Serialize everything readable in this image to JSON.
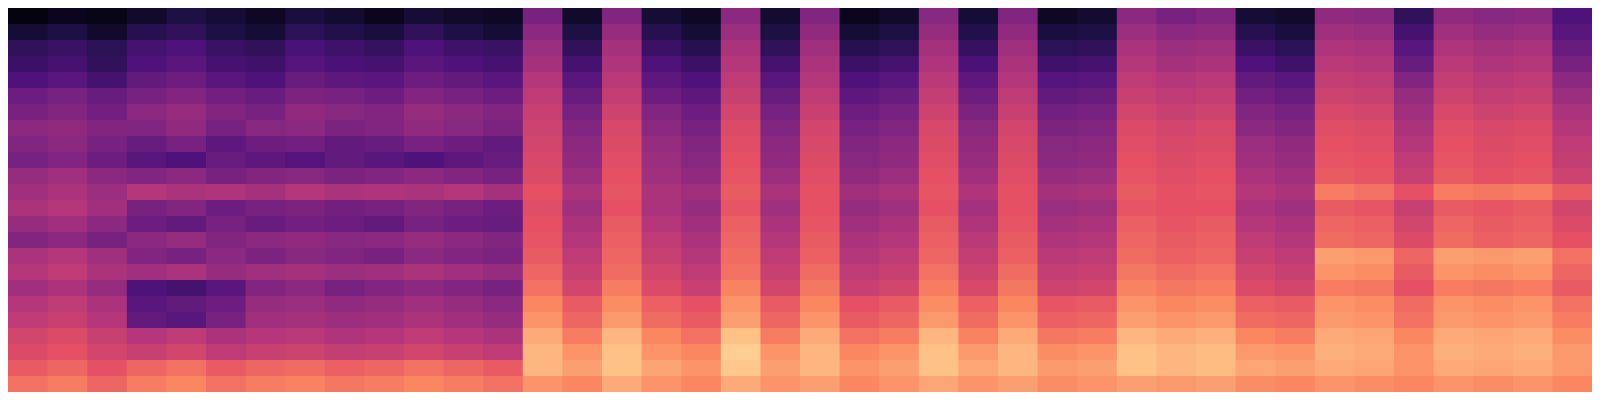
{
  "chart_data": {
    "type": "heatmap",
    "tick_labels": false,
    "color_range": [
      -80,
      0
    ],
    "cells": [
      [
        -78,
        -76,
        -77,
        -74,
        -70,
        -72,
        -75,
        -71,
        -73,
        -76,
        -72,
        -74,
        -75,
        -52,
        -74,
        -50,
        -72,
        -75,
        -48,
        -73,
        -50,
        -76,
        -74,
        -49,
        -72,
        -50,
        -75,
        -73,
        -48,
        -52,
        -50,
        -72,
        -74,
        -47,
        -48,
        -66,
        -47,
        -49,
        -48,
        -60
      ],
      [
        -72,
        -70,
        -74,
        -68,
        -66,
        -70,
        -72,
        -67,
        -69,
        -71,
        -66,
        -70,
        -72,
        -48,
        -70,
        -46,
        -68,
        -72,
        -45,
        -70,
        -47,
        -72,
        -70,
        -46,
        -69,
        -47,
        -71,
        -70,
        -45,
        -48,
        -47,
        -68,
        -71,
        -44,
        -45,
        -62,
        -44,
        -46,
        -45,
        -58
      ],
      [
        -66,
        -64,
        -67,
        -62,
        -60,
        -64,
        -66,
        -61,
        -63,
        -65,
        -60,
        -63,
        -64,
        -45,
        -66,
        -43,
        -64,
        -68,
        -42,
        -66,
        -44,
        -68,
        -66,
        -43,
        -65,
        -44,
        -67,
        -66,
        -42,
        -45,
        -44,
        -64,
        -67,
        -41,
        -42,
        -58,
        -41,
        -43,
        -42,
        -55
      ],
      [
        -64,
        -62,
        -66,
        -60,
        -58,
        -62,
        -63,
        -59,
        -61,
        -62,
        -58,
        -60,
        -62,
        -43,
        -62,
        -41,
        -60,
        -64,
        -40,
        -62,
        -42,
        -64,
        -62,
        -41,
        -61,
        -42,
        -63,
        -62,
        -40,
        -43,
        -42,
        -60,
        -63,
        -39,
        -40,
        -55,
        -39,
        -41,
        -40,
        -52
      ],
      [
        -60,
        -58,
        -62,
        -56,
        -54,
        -58,
        -60,
        -55,
        -57,
        -58,
        -54,
        -56,
        -58,
        -40,
        -58,
        -39,
        -57,
        -60,
        -38,
        -58,
        -40,
        -60,
        -58,
        -39,
        -57,
        -40,
        -59,
        -58,
        -38,
        -40,
        -39,
        -56,
        -58,
        -37,
        -38,
        -50,
        -37,
        -39,
        -38,
        -48
      ],
      [
        -54,
        -52,
        -55,
        -52,
        -50,
        -53,
        -55,
        -51,
        -52,
        -54,
        -50,
        -52,
        -54,
        -38,
        -55,
        -37,
        -54,
        -57,
        -36,
        -55,
        -38,
        -57,
        -55,
        -37,
        -54,
        -38,
        -56,
        -55,
        -36,
        -38,
        -37,
        -53,
        -55,
        -35,
        -36,
        -46,
        -35,
        -37,
        -36,
        -45
      ],
      [
        -52,
        -50,
        -53,
        -48,
        -46,
        -50,
        -52,
        -47,
        -49,
        -50,
        -46,
        -48,
        -50,
        -36,
        -52,
        -35,
        -50,
        -54,
        -34,
        -52,
        -36,
        -54,
        -52,
        -35,
        -51,
        -36,
        -53,
        -52,
        -34,
        -36,
        -35,
        -50,
        -52,
        -33,
        -34,
        -44,
        -33,
        -35,
        -34,
        -42
      ],
      [
        -48,
        -47,
        -50,
        -50,
        -47,
        -52,
        -49,
        -48,
        -51,
        -50,
        -47,
        -49,
        -51,
        -35,
        -50,
        -33,
        -48,
        -52,
        -32,
        -50,
        -34,
        -52,
        -50,
        -33,
        -49,
        -34,
        -51,
        -50,
        -32,
        -34,
        -33,
        -48,
        -50,
        -31,
        -32,
        -42,
        -31,
        -33,
        -32,
        -40
      ],
      [
        -50,
        -48,
        -52,
        -55,
        -52,
        -57,
        -54,
        -53,
        -56,
        -55,
        -52,
        -54,
        -56,
        -34,
        -48,
        -32,
        -46,
        -50,
        -31,
        -48,
        -33,
        -50,
        -48,
        -32,
        -47,
        -33,
        -49,
        -48,
        -31,
        -33,
        -32,
        -45,
        -47,
        -30,
        -31,
        -40,
        -30,
        -32,
        -31,
        -38
      ],
      [
        -52,
        -50,
        -54,
        -58,
        -60,
        -55,
        -57,
        -59,
        -56,
        -58,
        -60,
        -57,
        -55,
        -33,
        -47,
        -31,
        -45,
        -49,
        -30,
        -47,
        -32,
        -49,
        -47,
        -31,
        -46,
        -32,
        -48,
        -47,
        -30,
        -32,
        -31,
        -44,
        -46,
        -29,
        -30,
        -38,
        -29,
        -31,
        -30,
        -37
      ],
      [
        -46,
        -44,
        -48,
        -50,
        -48,
        -52,
        -50,
        -49,
        -51,
        -50,
        -48,
        -50,
        -52,
        -32,
        -45,
        -30,
        -44,
        -47,
        -29,
        -45,
        -31,
        -47,
        -45,
        -30,
        -44,
        -31,
        -46,
        -45,
        -29,
        -31,
        -30,
        -42,
        -44,
        -28,
        -29,
        -36,
        -28,
        -30,
        -29,
        -35
      ],
      [
        -44,
        -42,
        -45,
        -40,
        -42,
        -41,
        -43,
        -40,
        -42,
        -41,
        -42,
        -40,
        -43,
        -30,
        -42,
        -29,
        -42,
        -44,
        -28,
        -42,
        -30,
        -44,
        -42,
        -29,
        -41,
        -30,
        -43,
        -42,
        -28,
        -30,
        -29,
        -40,
        -42,
        -22,
        -24,
        -30,
        -22,
        -23,
        -22,
        -28
      ],
      [
        -42,
        -40,
        -44,
        -52,
        -50,
        -54,
        -52,
        -51,
        -53,
        -52,
        -50,
        -52,
        -54,
        -31,
        -44,
        -30,
        -42,
        -46,
        -29,
        -44,
        -30,
        -46,
        -44,
        -30,
        -43,
        -30,
        -45,
        -44,
        -29,
        -30,
        -30,
        -42,
        -44,
        -28,
        -29,
        -36,
        -28,
        -29,
        -28,
        -34
      ],
      [
        -46,
        -44,
        -48,
        -54,
        -56,
        -52,
        -55,
        -53,
        -54,
        -56,
        -52,
        -54,
        -55,
        -30,
        -42,
        -28,
        -40,
        -44,
        -27,
        -42,
        -29,
        -44,
        -42,
        -28,
        -41,
        -29,
        -43,
        -42,
        -27,
        -29,
        -28,
        -40,
        -42,
        -26,
        -27,
        -34,
        -26,
        -28,
        -27,
        -32
      ],
      [
        -50,
        -48,
        -52,
        -48,
        -46,
        -50,
        -48,
        -47,
        -49,
        -48,
        -46,
        -48,
        -50,
        -29,
        -40,
        -27,
        -38,
        -42,
        -26,
        -40,
        -28,
        -42,
        -40,
        -27,
        -39,
        -28,
        -41,
        -40,
        -26,
        -28,
        -27,
        -38,
        -40,
        -25,
        -26,
        -32,
        -25,
        -27,
        -26,
        -30
      ],
      [
        -42,
        -40,
        -44,
        -50,
        -52,
        -48,
        -51,
        -49,
        -50,
        -52,
        -48,
        -50,
        -51,
        -28,
        -38,
        -26,
        -36,
        -40,
        -25,
        -38,
        -27,
        -40,
        -38,
        -26,
        -37,
        -27,
        -39,
        -38,
        -25,
        -27,
        -26,
        -36,
        -38,
        -16,
        -17,
        -26,
        -16,
        -17,
        -16,
        -24
      ],
      [
        -40,
        -38,
        -42,
        -44,
        -42,
        -46,
        -44,
        -43,
        -45,
        -44,
        -42,
        -44,
        -46,
        -26,
        -36,
        -25,
        -34,
        -38,
        -24,
        -36,
        -25,
        -38,
        -36,
        -24,
        -35,
        -25,
        -37,
        -36,
        -23,
        -25,
        -24,
        -34,
        -36,
        -18,
        -19,
        -28,
        -18,
        -19,
        -18,
        -26
      ],
      [
        -44,
        -42,
        -46,
        -60,
        -62,
        -58,
        -50,
        -48,
        -52,
        -50,
        -48,
        -50,
        -52,
        -24,
        -34,
        -22,
        -32,
        -36,
        -21,
        -34,
        -23,
        -36,
        -34,
        -22,
        -33,
        -23,
        -35,
        -34,
        -21,
        -23,
        -22,
        -32,
        -34,
        -22,
        -23,
        -30,
        -22,
        -23,
        -22,
        -28
      ],
      [
        -40,
        -38,
        -42,
        -58,
        -56,
        -54,
        -46,
        -45,
        -47,
        -46,
        -44,
        -46,
        -48,
        -20,
        -28,
        -19,
        -27,
        -30,
        -18,
        -28,
        -20,
        -30,
        -28,
        -19,
        -27,
        -20,
        -29,
        -28,
        -18,
        -20,
        -19,
        -27,
        -28,
        -18,
        -19,
        -25,
        -18,
        -19,
        -18,
        -24
      ],
      [
        -38,
        -36,
        -40,
        -56,
        -58,
        -52,
        -44,
        -43,
        -45,
        -44,
        -42,
        -44,
        -46,
        -18,
        -26,
        -17,
        -25,
        -28,
        -16,
        -26,
        -18,
        -28,
        -26,
        -17,
        -25,
        -18,
        -27,
        -26,
        -16,
        -18,
        -17,
        -25,
        -26,
        -17,
        -18,
        -24,
        -17,
        -18,
        -17,
        -22
      ],
      [
        -34,
        -32,
        -36,
        -40,
        -38,
        -42,
        -40,
        -39,
        -41,
        -40,
        -38,
        -40,
        -42,
        -14,
        -22,
        -12,
        -20,
        -24,
        -10,
        -22,
        -14,
        -24,
        -22,
        -12,
        -21,
        -14,
        -23,
        -22,
        -12,
        -14,
        -13,
        -20,
        -22,
        -14,
        -15,
        -20,
        -14,
        -15,
        -14,
        -19
      ],
      [
        -32,
        -30,
        -34,
        -36,
        -34,
        -38,
        -36,
        -35,
        -37,
        -36,
        -34,
        -36,
        -38,
        -12,
        -18,
        -10,
        -18,
        -20,
        -8,
        -18,
        -12,
        -20,
        -18,
        -10,
        -17,
        -12,
        -19,
        -18,
        -10,
        -12,
        -11,
        -17,
        -18,
        -13,
        -14,
        -18,
        -13,
        -14,
        -13,
        -17
      ],
      [
        -28,
        -26,
        -30,
        -26,
        -24,
        -28,
        -26,
        -25,
        -27,
        -26,
        -24,
        -26,
        -28,
        -12,
        -16,
        -10,
        -15,
        -18,
        -9,
        -16,
        -12,
        -18,
        -16,
        -10,
        -15,
        -12,
        -17,
        -16,
        -10,
        -12,
        -11,
        -15,
        -16,
        -14,
        -15,
        -18,
        -14,
        -15,
        -14,
        -17
      ],
      [
        -24,
        -22,
        -26,
        -22,
        -20,
        -24,
        -22,
        -21,
        -23,
        -22,
        -20,
        -22,
        -24,
        -18,
        -20,
        -14,
        -18,
        -20,
        -14,
        -18,
        -16,
        -20,
        -18,
        -15,
        -18,
        -16,
        -19,
        -18,
        -16,
        -17,
        -16,
        -19,
        -20,
        -18,
        -19,
        -20,
        -18,
        -19,
        -18,
        -20
      ]
    ]
  }
}
